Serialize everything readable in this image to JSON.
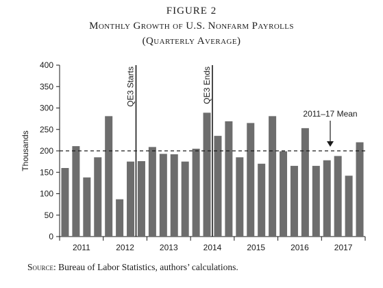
{
  "figure": {
    "label": "FIGURE 2",
    "title_line1": "Monthly Growth of U.S. Nonfarm Payrolls",
    "title_line2": "(Quarterly Average)"
  },
  "source": {
    "label": "Source:",
    "text": "Bureau of Labor Statistics, authors’ calculations."
  },
  "chart_data": {
    "type": "bar",
    "title": "Monthly Growth of U.S. Nonfarm Payrolls (Quarterly Average)",
    "ylabel": "Thousands",
    "xlabel": "",
    "ylim": [
      0,
      400
    ],
    "yticks": [
      0,
      50,
      100,
      150,
      200,
      250,
      300,
      350,
      400
    ],
    "year_labels": [
      "2011",
      "2012",
      "2013",
      "2014",
      "2015",
      "2016",
      "2017"
    ],
    "categories": [
      "2011Q1",
      "2011Q2",
      "2011Q3",
      "2011Q4",
      "2012Q1",
      "2012Q2",
      "2012Q3",
      "2012Q4",
      "2013Q1",
      "2013Q2",
      "2013Q3",
      "2013Q4",
      "2014Q1",
      "2014Q2",
      "2014Q3",
      "2014Q4",
      "2015Q1",
      "2015Q2",
      "2015Q3",
      "2015Q4",
      "2016Q1",
      "2016Q2",
      "2016Q3",
      "2016Q4",
      "2017Q1",
      "2017Q2",
      "2017Q3",
      "2017Q4"
    ],
    "values": [
      160,
      211,
      138,
      185,
      281,
      87,
      175,
      176,
      209,
      193,
      192,
      175,
      205,
      289,
      235,
      269,
      185,
      265,
      170,
      281,
      199,
      165,
      253,
      165,
      178,
      188,
      142,
      220
    ],
    "bar_color": "#6d6d6d",
    "mean": {
      "value": 200,
      "label": "2011–17 Mean"
    },
    "events": [
      {
        "label": "QE3 Starts",
        "x_index": 6.5
      },
      {
        "label": "QE3 Ends",
        "x_index": 13.5
      }
    ],
    "grid": false,
    "legend": "none"
  }
}
